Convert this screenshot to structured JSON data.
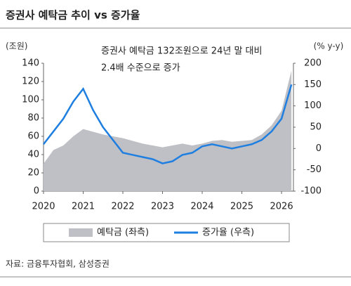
{
  "chart_data": {
    "type": "area-line",
    "title": "증권사 예탁금 추이 vs 증가율",
    "y_label": "(조원)",
    "y2_label": "(% y-y)",
    "annotation": [
      "증권사 예탁금 132조원으로 24년 말 대비",
      "2.4배 수준으로 증가"
    ],
    "source": "자료: 금융투자협회, 삼성증권",
    "x": [
      2020.0,
      2020.25,
      2020.5,
      2020.75,
      2021.0,
      2021.25,
      2021.5,
      2021.75,
      2022.0,
      2022.25,
      2022.5,
      2022.75,
      2023.0,
      2023.25,
      2023.5,
      2023.75,
      2024.0,
      2024.25,
      2024.5,
      2024.75,
      2025.0,
      2025.25,
      2025.5,
      2025.75,
      2026.0,
      2026.25
    ],
    "series": [
      {
        "name": "예탁금 (좌측)",
        "color": "#bfc0c6",
        "type": "area",
        "values": [
          30,
          45,
          50,
          60,
          68,
          65,
          62,
          60,
          58,
          55,
          52,
          50,
          48,
          50,
          52,
          50,
          52,
          55,
          56,
          54,
          55,
          56,
          62,
          72,
          88,
          132
        ]
      },
      {
        "name": "증가율 (우측)",
        "color": "#1f7fe0",
        "type": "line",
        "axis": "y2",
        "values": [
          10,
          40,
          70,
          110,
          140,
          90,
          50,
          20,
          -10,
          -15,
          -20,
          -25,
          -35,
          -30,
          -15,
          -10,
          5,
          10,
          5,
          0,
          5,
          10,
          20,
          40,
          70,
          150
        ]
      }
    ],
    "xlim": [
      2020,
      2026.3
    ],
    "xticks": [
      2020,
      2021,
      2022,
      2023,
      2024,
      2025,
      2026
    ],
    "ylim": [
      0,
      140
    ],
    "yticks": [
      0,
      20,
      40,
      60,
      80,
      100,
      120,
      140
    ],
    "y2lim": [
      -100,
      200
    ],
    "y2ticks": [
      -100,
      -50,
      0,
      50,
      100,
      150,
      200
    ]
  }
}
